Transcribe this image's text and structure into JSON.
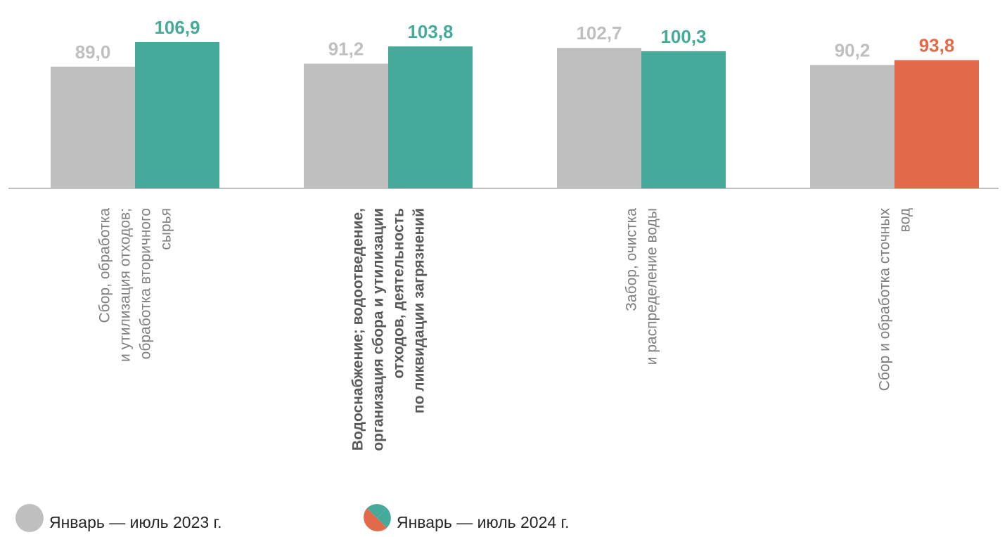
{
  "chart_data": {
    "type": "bar",
    "categories": [
      [
        "Сбор, обработка",
        "и утилизация отходов;",
        "обработка вторичного",
        "сырья"
      ],
      [
        "Водоснабжение; водоотведение,",
        "организация сбора и утилизации",
        "отходов, деятельность",
        "по ликвидации загрязнений"
      ],
      [
        "Забор, очистка",
        "и распределение воды"
      ],
      [
        "Сбор и обработка сточных",
        "вод"
      ]
    ],
    "category_bold": [
      false,
      true,
      false,
      false
    ],
    "series": [
      {
        "name": "Январь — июль 2023 г.",
        "values": [
          89.0,
          91.2,
          102.7,
          90.2
        ],
        "labels": [
          "89,0",
          "91,2",
          "102,7",
          "90,2"
        ],
        "colors": [
          "#bfbfbf",
          "#bfbfbf",
          "#bfbfbf",
          "#bfbfbf"
        ]
      },
      {
        "name": "Январь — июль 2024 г.",
        "values": [
          106.9,
          103.8,
          100.3,
          93.8
        ],
        "labels": [
          "106,9",
          "103,8",
          "100,3",
          "93,8"
        ],
        "colors": [
          "#45aa99",
          "#45aa99",
          "#45aa99",
          "#e2694a"
        ]
      }
    ],
    "ylim": [
      0,
      106.9
    ],
    "grid": false,
    "legend_position": "bottom-left"
  },
  "colors": {
    "grey": "#bfbfbf",
    "label_grey": "#bfbfbf",
    "green": "#45aa99",
    "orange": "#e2694a",
    "axis": "#bfbfbf",
    "category_text": "#7f7f7f",
    "category_bold_text": "#595959"
  },
  "legend": {
    "item_2023": "Январь — июль 2023 г.",
    "item_2024": "Январь — июль 2024 г."
  }
}
